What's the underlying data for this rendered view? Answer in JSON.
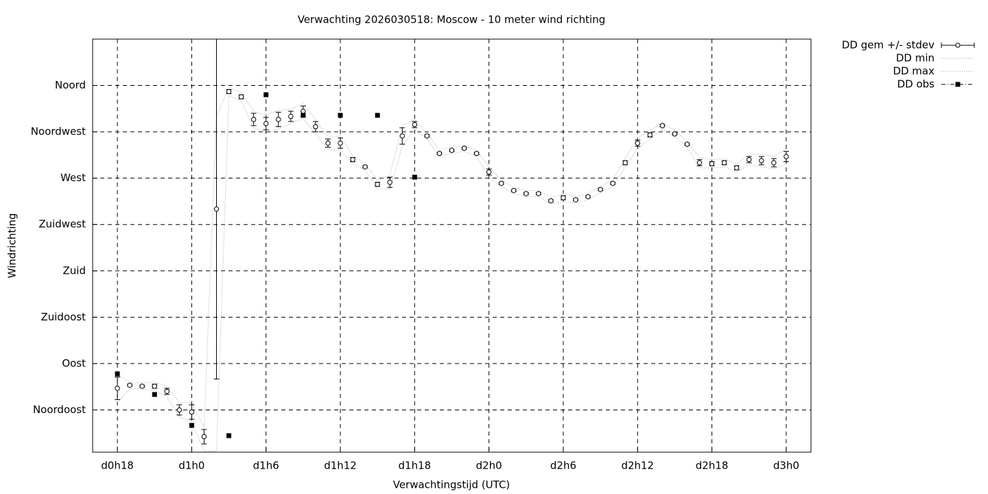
{
  "chart_data": {
    "type": "errorbar",
    "title": "Verwachting 2026030518: Moscow - 10 meter wind richting",
    "xlabel": "Verwachtingstijd (UTC)",
    "ylabel": "Windrichting",
    "xlim": [
      16,
      74
    ],
    "ylim": [
      4,
      405
    ],
    "xticks": [
      {
        "value": 18,
        "label": "d0h18"
      },
      {
        "value": 24,
        "label": "d1h0"
      },
      {
        "value": 30,
        "label": "d1h6"
      },
      {
        "value": 36,
        "label": "d1h12"
      },
      {
        "value": 42,
        "label": "d1h18"
      },
      {
        "value": 48,
        "label": "d2h0"
      },
      {
        "value": 54,
        "label": "d2h6"
      },
      {
        "value": 60,
        "label": "d2h12"
      },
      {
        "value": 66,
        "label": "d2h18"
      },
      {
        "value": 72,
        "label": "d3h0"
      }
    ],
    "yticks": [
      {
        "value": 45,
        "label": "Noordoost"
      },
      {
        "value": 90,
        "label": "Oost"
      },
      {
        "value": 135,
        "label": "Zuidoost"
      },
      {
        "value": 180,
        "label": "Zuid"
      },
      {
        "value": 225,
        "label": "Zuidwest"
      },
      {
        "value": 270,
        "label": "West"
      },
      {
        "value": 315,
        "label": "Noordwest"
      },
      {
        "value": 360,
        "label": "Noord"
      }
    ],
    "grid": true,
    "legend": "outside-top-right",
    "x": [
      18,
      19,
      20,
      21,
      22,
      23,
      24,
      25,
      26,
      27,
      28,
      29,
      30,
      31,
      32,
      33,
      34,
      35,
      36,
      37,
      38,
      39,
      40,
      41,
      42,
      43,
      44,
      45,
      46,
      47,
      48,
      49,
      50,
      51,
      52,
      53,
      54,
      55,
      56,
      57,
      58,
      59,
      60,
      61,
      62,
      63,
      64,
      65,
      66,
      67,
      68,
      69,
      70,
      71,
      72
    ],
    "series": [
      {
        "name": "DD gem +/- stdev",
        "color": "#000000",
        "values": [
          66,
          69,
          68,
          68,
          63,
          45,
          43,
          19,
          240,
          354,
          349,
          327,
          323,
          327,
          330,
          335,
          320,
          304,
          304,
          288,
          281,
          264,
          266,
          311,
          322,
          311,
          294,
          297,
          299,
          294,
          276,
          265,
          258,
          255,
          255,
          248,
          251,
          249,
          252,
          259,
          265,
          285,
          304,
          312,
          321,
          313,
          303,
          285,
          284,
          285,
          280,
          288,
          287,
          285,
          291
        ],
        "errors": [
          11,
          1,
          1,
          2,
          3,
          5,
          7,
          7,
          165,
          2,
          2,
          6,
          6,
          7,
          5,
          5,
          5,
          4,
          5,
          2,
          1,
          2,
          5,
          8,
          3,
          1,
          1,
          1,
          1,
          1,
          3,
          1,
          1,
          1,
          1,
          1,
          2,
          1,
          1,
          1,
          1,
          2,
          3,
          2,
          1,
          1,
          1,
          3,
          2,
          2,
          2,
          3,
          4,
          4,
          5
        ]
      },
      {
        "name": "DD min",
        "color": "#b0b0b0",
        "values": [
          52,
          66,
          65,
          64,
          58,
          38,
          34,
          5,
          5,
          350,
          345,
          319,
          315,
          318,
          323,
          328,
          313,
          298,
          297,
          284,
          278,
          260,
          259,
          301,
          317,
          308,
          291,
          294,
          296,
          291,
          271,
          262,
          255,
          252,
          252,
          245,
          247,
          246,
          249,
          256,
          262,
          281,
          299,
          308,
          318,
          310,
          300,
          280,
          280,
          281,
          276,
          283,
          281,
          279,
          284
        ]
      },
      {
        "name": "DD max",
        "color": "#b0b0b0",
        "values": [
          79,
          72,
          71,
          72,
          68,
          52,
          52,
          28,
          330,
          358,
          353,
          335,
          331,
          336,
          337,
          342,
          327,
          310,
          311,
          292,
          284,
          268,
          273,
          321,
          327,
          314,
          297,
          300,
          302,
          297,
          281,
          268,
          261,
          258,
          258,
          251,
          255,
          252,
          255,
          262,
          268,
          289,
          309,
          316,
          324,
          316,
          306,
          290,
          288,
          289,
          284,
          293,
          293,
          291,
          298
        ]
      },
      {
        "name": "DD obs",
        "color": "#000000",
        "x": [
          18,
          21,
          24,
          27,
          30,
          33,
          36,
          39,
          42
        ],
        "values": [
          80,
          60,
          30,
          20,
          351,
          331,
          331,
          331,
          271
        ]
      }
    ]
  }
}
